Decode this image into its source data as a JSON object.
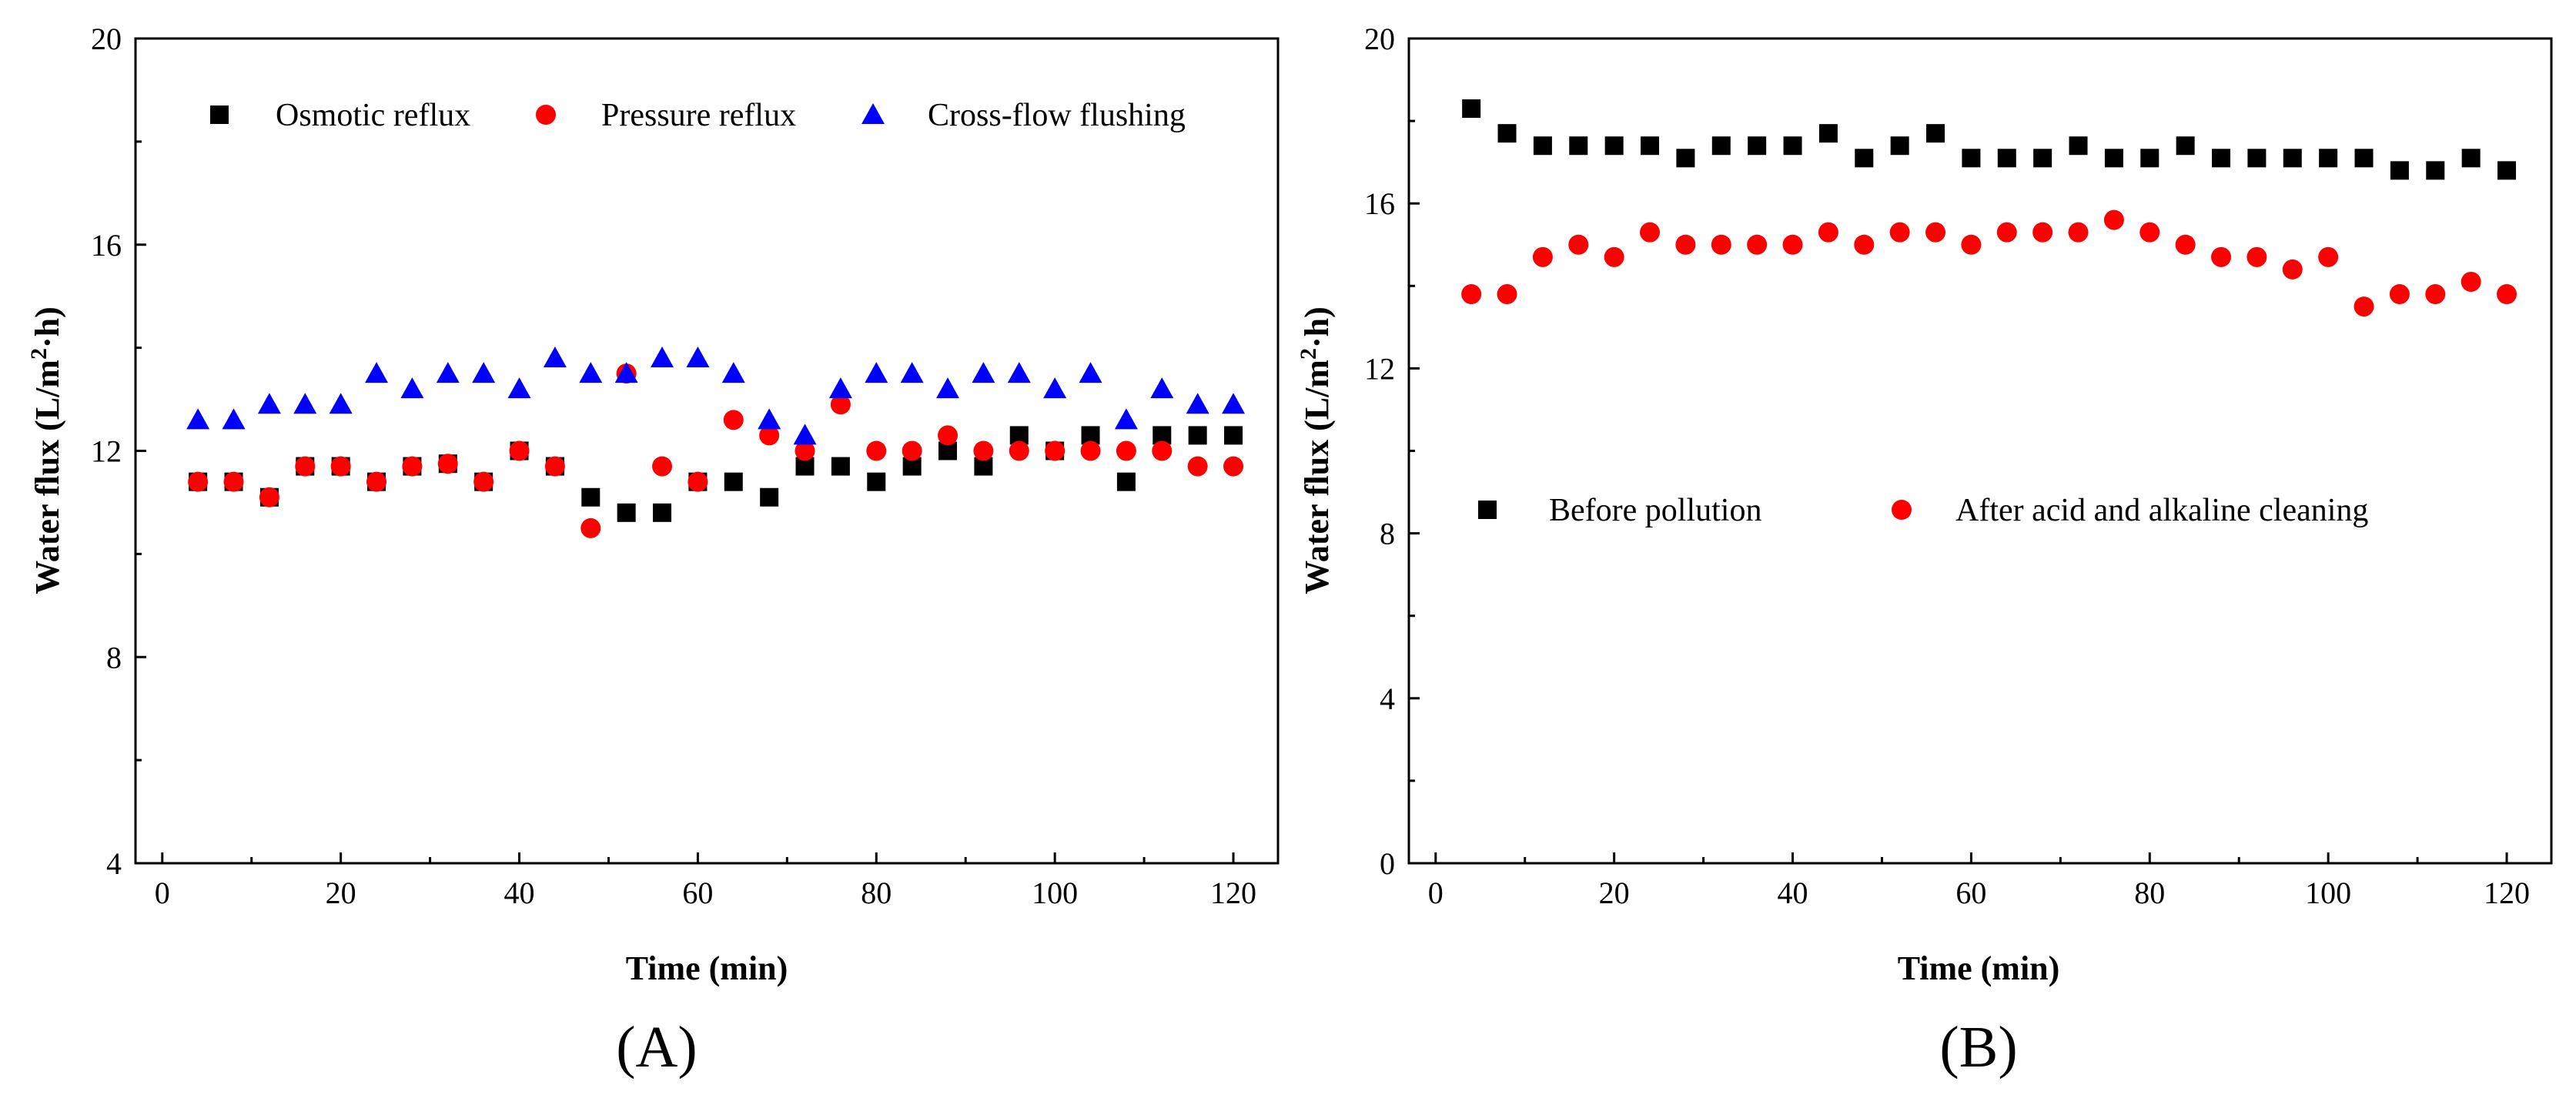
{
  "chart_data": [
    {
      "type": "scatter",
      "panel_label": "(A)",
      "xlabel": "Time (min)",
      "ylabel_main": "Water flux (L/m",
      "ylabel_sup": "2",
      "ylabel_tail": "·h)",
      "xlim": [
        -3,
        125
      ],
      "ylim": [
        4,
        20
      ],
      "xticks": [
        0,
        20,
        40,
        60,
        80,
        100,
        120
      ],
      "xtick_labels": [
        "0",
        "20",
        "40",
        "60",
        "80",
        "100",
        "120"
      ],
      "yticks": [
        4,
        8,
        12,
        16,
        20
      ],
      "ytick_labels": [
        "4",
        "8",
        "12",
        "16",
        "20"
      ],
      "legend_position": "top",
      "x": [
        4,
        8,
        12,
        16,
        20,
        24,
        28,
        32,
        36,
        40,
        44,
        48,
        52,
        56,
        60,
        64,
        68,
        72,
        76,
        80,
        84,
        88,
        92,
        96,
        100,
        104,
        108,
        112,
        116,
        120
      ],
      "series": [
        {
          "name": "Osmotic reflux",
          "marker": "square",
          "color": "#000000",
          "values": [
            11.4,
            11.4,
            11.1,
            11.7,
            11.7,
            11.4,
            11.7,
            11.75,
            11.4,
            12.0,
            11.7,
            11.1,
            10.8,
            10.8,
            11.4,
            11.4,
            11.1,
            11.7,
            11.7,
            11.4,
            11.7,
            12.0,
            11.7,
            12.3,
            12.0,
            12.3,
            11.4,
            12.3,
            12.3,
            12.3
          ]
        },
        {
          "name": "Pressure reflux",
          "marker": "circle",
          "color": "#ff0000",
          "values": [
            11.4,
            11.4,
            11.1,
            11.7,
            11.7,
            11.4,
            11.7,
            11.75,
            11.4,
            12.0,
            11.7,
            10.5,
            13.5,
            11.7,
            11.4,
            12.6,
            12.3,
            12.0,
            12.9,
            12.0,
            12.0,
            12.3,
            12.0,
            12.0,
            12.0,
            12.0,
            12.0,
            12.0,
            11.7,
            11.7
          ]
        },
        {
          "name": "Cross-flow flushing",
          "marker": "triangle",
          "color": "#0000ff",
          "values": [
            12.6,
            12.6,
            12.9,
            12.9,
            12.9,
            13.5,
            13.2,
            13.5,
            13.5,
            13.2,
            13.8,
            13.5,
            13.5,
            13.8,
            13.8,
            13.5,
            12.6,
            12.3,
            13.2,
            13.5,
            13.5,
            13.2,
            13.5,
            13.5,
            13.2,
            13.5,
            12.6,
            13.2,
            12.9,
            12.9
          ]
        }
      ]
    },
    {
      "type": "scatter",
      "panel_label": "(B)",
      "xlabel": "Time (min)",
      "ylabel_main": "Water flux (L/m",
      "ylabel_sup": "2",
      "ylabel_tail": "·h)",
      "xlim": [
        -3,
        125
      ],
      "ylim": [
        0,
        20
      ],
      "xticks": [
        0,
        20,
        40,
        60,
        80,
        100,
        120
      ],
      "xtick_labels": [
        "0",
        "20",
        "40",
        "60",
        "80",
        "100",
        "120"
      ],
      "yticks": [
        0,
        4,
        8,
        12,
        16,
        20
      ],
      "ytick_labels": [
        "0",
        "4",
        "8",
        "12",
        "16",
        "20"
      ],
      "legend_position": "middle",
      "x": [
        4,
        8,
        12,
        16,
        20,
        24,
        28,
        32,
        36,
        40,
        44,
        48,
        52,
        56,
        60,
        64,
        68,
        72,
        76,
        80,
        84,
        88,
        92,
        96,
        100,
        104,
        108,
        112,
        116,
        120
      ],
      "series": [
        {
          "name": "Before pollution",
          "marker": "square",
          "color": "#000000",
          "values": [
            18.3,
            17.7,
            17.4,
            17.4,
            17.4,
            17.4,
            17.1,
            17.4,
            17.4,
            17.4,
            17.7,
            17.1,
            17.4,
            17.7,
            17.1,
            17.1,
            17.1,
            17.4,
            17.1,
            17.1,
            17.4,
            17.1,
            17.1,
            17.1,
            17.1,
            17.1,
            16.8,
            16.8,
            17.1,
            16.8
          ]
        },
        {
          "name": "After acid and alkaline cleaning",
          "marker": "circle",
          "color": "#ff0000",
          "values": [
            13.8,
            13.8,
            14.7,
            15.0,
            14.7,
            15.3,
            15.0,
            15.0,
            15.0,
            15.0,
            15.3,
            15.0,
            15.3,
            15.3,
            15.0,
            15.3,
            15.3,
            15.3,
            15.6,
            15.3,
            15.0,
            14.7,
            14.7,
            14.4,
            14.7,
            13.5,
            13.8,
            13.8,
            14.1,
            13.8
          ]
        }
      ]
    }
  ]
}
